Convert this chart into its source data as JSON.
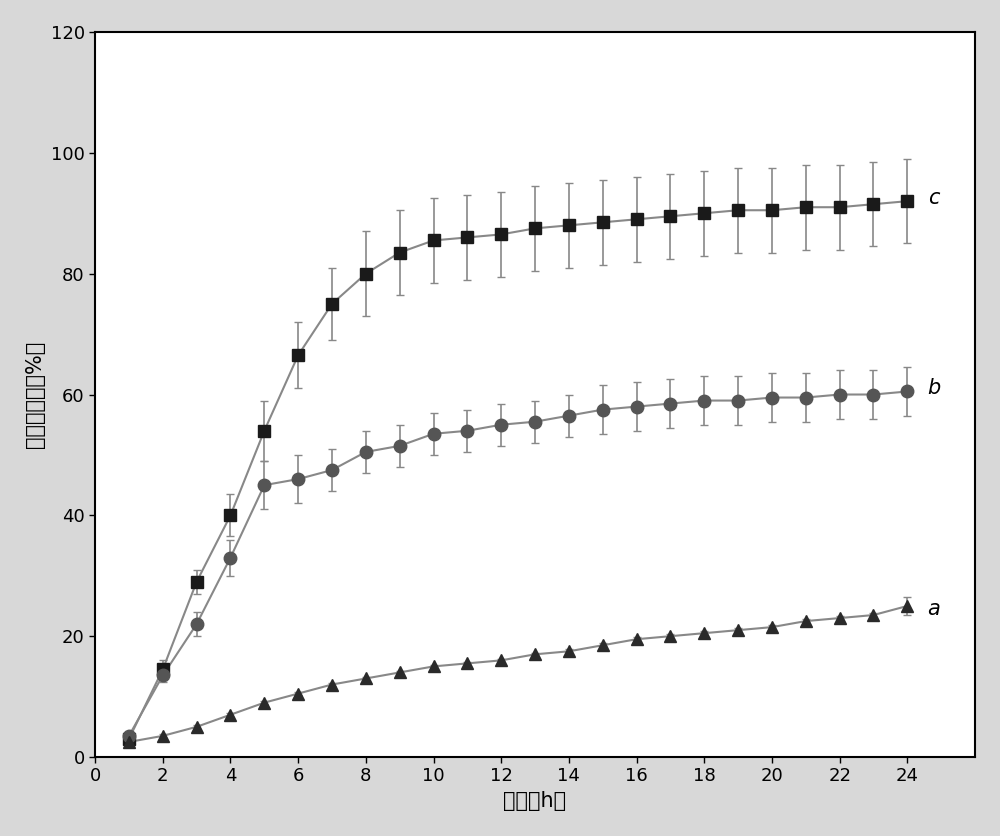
{
  "title": "",
  "xlabel": "时间（h）",
  "ylabel": "累积释放量（%）",
  "xlim": [
    0,
    26
  ],
  "ylim": [
    0,
    120
  ],
  "xticks": [
    0,
    2,
    4,
    6,
    8,
    10,
    12,
    14,
    16,
    18,
    20,
    22,
    24
  ],
  "yticks": [
    0,
    20,
    40,
    60,
    80,
    100,
    120
  ],
  "background_color": "#d8d8d8",
  "plot_bg_color": "#ffffff",
  "series_a": {
    "label": "a",
    "x": [
      1,
      2,
      3,
      4,
      5,
      6,
      7,
      8,
      9,
      10,
      11,
      12,
      13,
      14,
      15,
      16,
      17,
      18,
      19,
      20,
      21,
      22,
      23,
      24
    ],
    "y": [
      2.5,
      3.5,
      5.0,
      7.0,
      9.0,
      10.5,
      12.0,
      13.0,
      14.0,
      15.0,
      15.5,
      16.0,
      17.0,
      17.5,
      18.5,
      19.5,
      20.0,
      20.5,
      21.0,
      21.5,
      22.5,
      23.0,
      23.5,
      25.0
    ],
    "yerr": [
      0.3,
      0.3,
      0.3,
      0.3,
      0.3,
      0.3,
      0.3,
      0.3,
      0.3,
      0.3,
      0.3,
      0.3,
      0.3,
      0.3,
      0.3,
      0.3,
      0.3,
      0.3,
      0.3,
      0.3,
      0.3,
      0.3,
      0.3,
      1.5
    ],
    "color": "#2a2a2a",
    "marker": "^",
    "markersize": 9
  },
  "series_b": {
    "label": "b",
    "x": [
      1,
      2,
      3,
      4,
      5,
      6,
      7,
      8,
      9,
      10,
      11,
      12,
      13,
      14,
      15,
      16,
      17,
      18,
      19,
      20,
      21,
      22,
      23,
      24
    ],
    "y": [
      3.5,
      13.5,
      22.0,
      33.0,
      45.0,
      46.0,
      47.5,
      50.5,
      51.5,
      53.5,
      54.0,
      55.0,
      55.5,
      56.5,
      57.5,
      58.0,
      58.5,
      59.0,
      59.0,
      59.5,
      59.5,
      60.0,
      60.0,
      60.5
    ],
    "yerr": [
      0.5,
      1.0,
      2.0,
      3.0,
      4.0,
      4.0,
      3.5,
      3.5,
      3.5,
      3.5,
      3.5,
      3.5,
      3.5,
      3.5,
      4.0,
      4.0,
      4.0,
      4.0,
      4.0,
      4.0,
      4.0,
      4.0,
      4.0,
      4.0
    ],
    "color": "#555555",
    "marker": "o",
    "markersize": 9
  },
  "series_c": {
    "label": "c",
    "x": [
      1,
      2,
      3,
      4,
      5,
      6,
      7,
      8,
      9,
      10,
      11,
      12,
      13,
      14,
      15,
      16,
      17,
      18,
      19,
      20,
      21,
      22,
      23,
      24
    ],
    "y": [
      3.0,
      14.5,
      29.0,
      40.0,
      54.0,
      66.5,
      75.0,
      80.0,
      83.5,
      85.5,
      86.0,
      86.5,
      87.5,
      88.0,
      88.5,
      89.0,
      89.5,
      90.0,
      90.5,
      90.5,
      91.0,
      91.0,
      91.5,
      92.0
    ],
    "yerr": [
      0.5,
      1.5,
      2.0,
      3.5,
      5.0,
      5.5,
      6.0,
      7.0,
      7.0,
      7.0,
      7.0,
      7.0,
      7.0,
      7.0,
      7.0,
      7.0,
      7.0,
      7.0,
      7.0,
      7.0,
      7.0,
      7.0,
      7.0,
      7.0
    ],
    "color": "#1a1a1a",
    "marker": "s",
    "markersize": 9
  },
  "line_color": "#888888",
  "elinewidth": 1.2,
  "capsize": 3,
  "linewidth": 1.5,
  "annotation_fontsize": 15,
  "axis_label_fontsize": 15,
  "tick_fontsize": 13
}
